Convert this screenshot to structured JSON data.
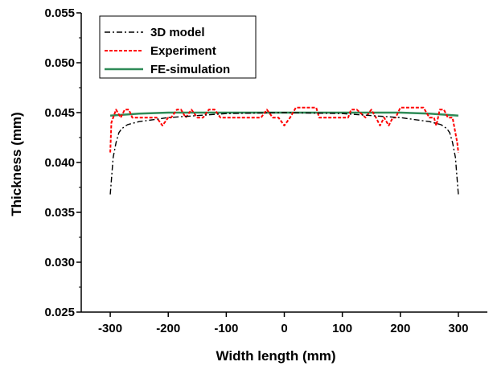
{
  "chart_data": {
    "type": "line",
    "xlabel": "Width length (mm)",
    "ylabel": "Thickness (mm)",
    "xlim": [
      -350,
      350
    ],
    "ylim": [
      0.025,
      0.055
    ],
    "xticks": [
      "-300",
      "-200",
      "-100",
      "0",
      "100",
      "200",
      "300"
    ],
    "yticks": [
      "0.025",
      "0.030",
      "0.035",
      "0.040",
      "0.045",
      "0.050",
      "0.055"
    ],
    "grid": false,
    "legend_position": "top-left",
    "series": [
      {
        "name": "3D model",
        "color": "#000000",
        "style": "dash-dot",
        "x": [
          -300,
          -295,
          -290,
          -285,
          -280,
          -270,
          -250,
          -200,
          -100,
          0,
          100,
          200,
          250,
          270,
          280,
          285,
          290,
          295,
          300
        ],
        "y": [
          0.0368,
          0.0405,
          0.042,
          0.043,
          0.0434,
          0.0438,
          0.0441,
          0.0445,
          0.0449,
          0.045,
          0.0449,
          0.0445,
          0.0441,
          0.0438,
          0.0434,
          0.043,
          0.042,
          0.0405,
          0.0368
        ]
      },
      {
        "name": "Experiment",
        "color": "#ff0000",
        "style": "dashed",
        "x": [
          -300,
          -298,
          -290,
          -282,
          -275,
          -268,
          -262,
          -250,
          -240,
          -220,
          -210,
          -200,
          -195,
          -185,
          -178,
          -170,
          -160,
          -150,
          -140,
          -130,
          -120,
          -110,
          -100,
          -90,
          -80,
          -50,
          -40,
          -30,
          -20,
          -10,
          0,
          10,
          20,
          30,
          40,
          55,
          60,
          70,
          80,
          90,
          100,
          110,
          115,
          125,
          140,
          150,
          158,
          165,
          172,
          180,
          187,
          192,
          200,
          210,
          220,
          240,
          250,
          258,
          262,
          268,
          275,
          282,
          290,
          298,
          300
        ],
        "y": [
          0.041,
          0.044,
          0.0453,
          0.0445,
          0.0453,
          0.0453,
          0.0445,
          0.0445,
          0.0445,
          0.0445,
          0.0437,
          0.0445,
          0.0445,
          0.0453,
          0.0453,
          0.0445,
          0.0453,
          0.0445,
          0.0445,
          0.0453,
          0.0453,
          0.0445,
          0.0445,
          0.0445,
          0.0445,
          0.0445,
          0.0445,
          0.0453,
          0.0445,
          0.0445,
          0.0437,
          0.0445,
          0.0455,
          0.0455,
          0.0455,
          0.0455,
          0.0445,
          0.0445,
          0.0445,
          0.0445,
          0.0445,
          0.0445,
          0.0453,
          0.0453,
          0.0445,
          0.0453,
          0.0445,
          0.0437,
          0.0445,
          0.0437,
          0.0445,
          0.0445,
          0.0455,
          0.0455,
          0.0455,
          0.0455,
          0.0445,
          0.0445,
          0.0437,
          0.0453,
          0.0453,
          0.0445,
          0.0445,
          0.042,
          0.041
        ]
      },
      {
        "name": "FE-simulation",
        "color": "#2e8b57",
        "style": "solid",
        "x": [
          -300,
          -250,
          -200,
          -100,
          0,
          100,
          200,
          250,
          300
        ],
        "y": [
          0.0447,
          0.0449,
          0.045,
          0.045,
          0.045,
          0.045,
          0.045,
          0.0449,
          0.0447
        ]
      }
    ]
  }
}
